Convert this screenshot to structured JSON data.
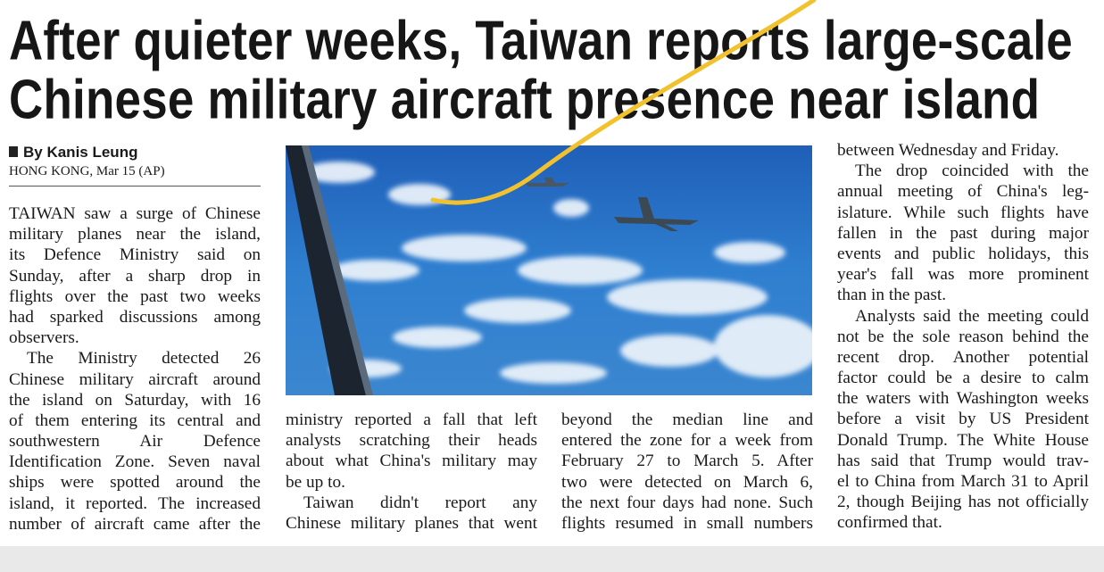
{
  "headline": {
    "line1": "After quieter weeks, Taiwan reports large-scale",
    "line2": "Chinese military aircraft presence near island"
  },
  "byline": "By Kanis Leung",
  "dateline": "HONG KONG, Mar 15 (AP)",
  "photo": {
    "subject": "fighter-jets-over-clouds"
  },
  "colors": {
    "highlight_stroke": "#f2c12e",
    "sky": "#2a6fc4"
  },
  "columns": [
    [
      "TAIWAN saw a surge of Chinese",
      "military planes near the island,",
      "its Defence Ministry said on",
      "Sunday, after a sharp drop in",
      "flights over the past two weeks",
      "had sparked discussions among",
      "observers.",
      "The Ministry detected 26",
      "Chinese military aircraft around",
      "the island on Saturday, with 16",
      "of them entering its central and",
      "southwestern Air Defence",
      "Identification Zone. Seven naval",
      "ships were spotted around the",
      "island, it reported. The increased",
      "number of aircraft came after the"
    ],
    [
      "ministry reported a fall that left",
      "analysts scratching their heads",
      "about what China's military may",
      "be up to.",
      "Taiwan didn't report any",
      "Chinese military planes that went"
    ],
    [
      "beyond the median line and",
      "entered the zone for a week from",
      "February 27 to March 5. After",
      "two were detected on March 6,",
      "the next four days had none. Such",
      "flights resumed in small numbers"
    ],
    [
      "between Wednesday and Friday.",
      "The drop coincided with the",
      "annual meeting of China's leg-",
      "islature. While such flights have",
      "fallen in the past during major",
      "events and public holidays, this",
      "year's fall was more prominent",
      "than in the past.",
      "Analysts said the meeting could",
      "not be the sole reason behind the",
      "recent drop. Another potential",
      "factor could be a desire to calm",
      "the waters with Washington weeks",
      "before a visit by US President",
      "Donald Trump. The White House",
      "has said that Trump would trav-",
      "el to China from March 31 to April",
      "2, though Beijing has not officially",
      "confirmed that."
    ]
  ]
}
